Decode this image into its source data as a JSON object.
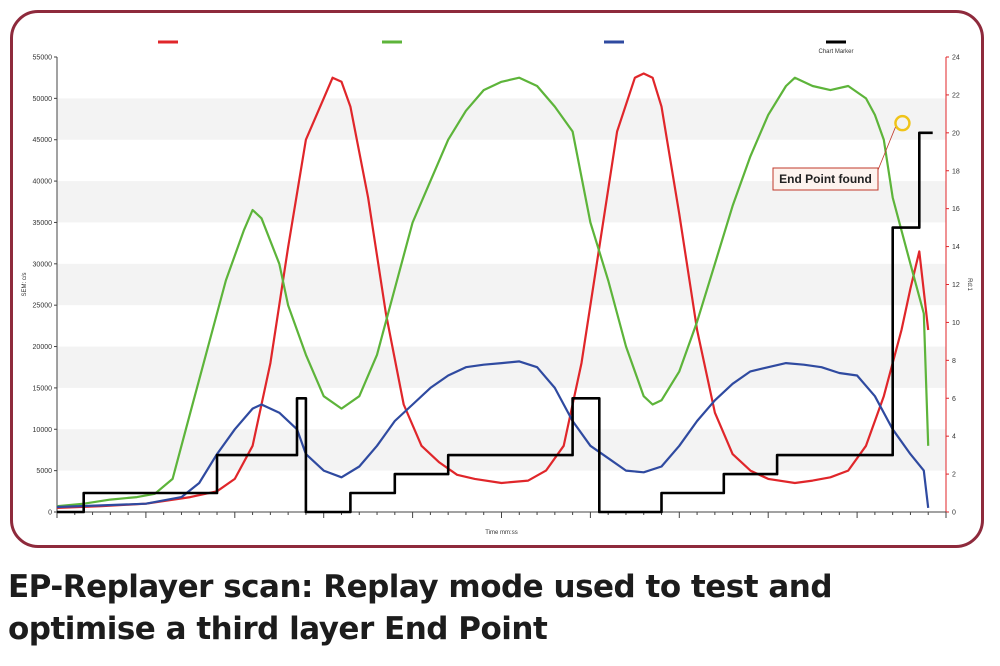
{
  "caption": "EP-Replayer scan: Replay mode used to test and optimise a third layer End Point",
  "colors": {
    "frame": "#8e2a3c",
    "red": "#e0262a",
    "green": "#5db43a",
    "blue": "#2f4aa0",
    "black": "#000000",
    "marker": "#f0c419",
    "callout_border": "#c0392b"
  },
  "chart_data": {
    "type": "line",
    "xlabel": "Time mm:ss",
    "ylabel_left": "SEM: c/s",
    "ylabel_right": "Rd:1",
    "ylim_left": [
      0,
      55000
    ],
    "ylim_right": [
      0,
      24
    ],
    "yticks_left": [
      "0",
      "5000",
      "10000",
      "15000",
      "20000",
      "25000",
      "30000",
      "35000",
      "40000",
      "45000",
      "50000",
      "55000"
    ],
    "yticks_right": [
      "0",
      "2",
      "4",
      "6",
      "8",
      "10",
      "12",
      "14",
      "16",
      "18",
      "20",
      "22",
      "24"
    ],
    "x_range": [
      0,
      100
    ],
    "grid": "horizontal bands",
    "legend": {
      "position": "top",
      "entries": [
        {
          "color": "#e0262a",
          "label": ""
        },
        {
          "color": "#5db43a",
          "label": ""
        },
        {
          "color": "#2f4aa0",
          "label": ""
        },
        {
          "color": "#000000",
          "label": "Chart Marker"
        }
      ]
    },
    "annotation": {
      "text": "End Point found",
      "x": 95.1,
      "y": 47000
    },
    "series": [
      {
        "color": "#e0262a",
        "axis": "left",
        "points": [
          [
            0,
            500
          ],
          [
            5,
            700
          ],
          [
            10,
            1000
          ],
          [
            15,
            1800
          ],
          [
            18,
            2500
          ],
          [
            20,
            4000
          ],
          [
            22,
            8000
          ],
          [
            24,
            18000
          ],
          [
            26,
            32000
          ],
          [
            28,
            45000
          ],
          [
            30,
            50000
          ],
          [
            31,
            52500
          ],
          [
            32,
            52000
          ],
          [
            33,
            49000
          ],
          [
            35,
            38000
          ],
          [
            37,
            24000
          ],
          [
            39,
            13000
          ],
          [
            41,
            8000
          ],
          [
            43,
            6000
          ],
          [
            45,
            4500
          ],
          [
            47,
            4000
          ],
          [
            50,
            3500
          ],
          [
            53,
            3800
          ],
          [
            55,
            5000
          ],
          [
            57,
            8000
          ],
          [
            59,
            18000
          ],
          [
            61,
            32000
          ],
          [
            63,
            46000
          ],
          [
            65,
            52500
          ],
          [
            66,
            53000
          ],
          [
            67,
            52500
          ],
          [
            68,
            49000
          ],
          [
            70,
            36000
          ],
          [
            72,
            22000
          ],
          [
            74,
            12000
          ],
          [
            76,
            7000
          ],
          [
            78,
            5000
          ],
          [
            80,
            4000
          ],
          [
            83,
            3500
          ],
          [
            85,
            3800
          ],
          [
            87,
            4200
          ],
          [
            89,
            5000
          ],
          [
            91,
            8000
          ],
          [
            93,
            14000
          ],
          [
            95,
            22000
          ],
          [
            96,
            27000
          ],
          [
            97,
            31500
          ],
          [
            98,
            22000
          ]
        ]
      },
      {
        "color": "#5db43a",
        "axis": "left",
        "points": [
          [
            0,
            700
          ],
          [
            3,
            1000
          ],
          [
            6,
            1500
          ],
          [
            9,
            1800
          ],
          [
            11,
            2200
          ],
          [
            13,
            4000
          ],
          [
            15,
            12000
          ],
          [
            17,
            20000
          ],
          [
            19,
            28000
          ],
          [
            21,
            34000
          ],
          [
            22,
            36500
          ],
          [
            23,
            35500
          ],
          [
            25,
            30000
          ],
          [
            26,
            25000
          ],
          [
            28,
            19000
          ],
          [
            30,
            14000
          ],
          [
            32,
            12500
          ],
          [
            34,
            14000
          ],
          [
            36,
            19000
          ],
          [
            38,
            27000
          ],
          [
            40,
            35000
          ],
          [
            42,
            40000
          ],
          [
            44,
            45000
          ],
          [
            46,
            48500
          ],
          [
            48,
            51000
          ],
          [
            50,
            52000
          ],
          [
            52,
            52500
          ],
          [
            54,
            51500
          ],
          [
            56,
            49000
          ],
          [
            58,
            46000
          ],
          [
            60,
            35000
          ],
          [
            62,
            28000
          ],
          [
            64,
            20000
          ],
          [
            66,
            14000
          ],
          [
            67,
            13000
          ],
          [
            68,
            13500
          ],
          [
            70,
            17000
          ],
          [
            72,
            23000
          ],
          [
            74,
            30000
          ],
          [
            76,
            37000
          ],
          [
            78,
            43000
          ],
          [
            80,
            48000
          ],
          [
            82,
            51500
          ],
          [
            83,
            52500
          ],
          [
            85,
            51500
          ],
          [
            87,
            51000
          ],
          [
            89,
            51500
          ],
          [
            91,
            50000
          ],
          [
            92,
            48000
          ],
          [
            93,
            45000
          ],
          [
            94,
            38000
          ],
          [
            96,
            30000
          ],
          [
            97.5,
            24000
          ],
          [
            98,
            8000
          ]
        ]
      },
      {
        "color": "#2f4aa0",
        "axis": "left",
        "points": [
          [
            0,
            600
          ],
          [
            5,
            800
          ],
          [
            10,
            1000
          ],
          [
            14,
            1800
          ],
          [
            16,
            3500
          ],
          [
            18,
            7000
          ],
          [
            20,
            10000
          ],
          [
            22,
            12500
          ],
          [
            23,
            13000
          ],
          [
            25,
            12000
          ],
          [
            27,
            10000
          ],
          [
            28,
            7000
          ],
          [
            30,
            5000
          ],
          [
            32,
            4200
          ],
          [
            34,
            5500
          ],
          [
            36,
            8000
          ],
          [
            38,
            11000
          ],
          [
            40,
            13000
          ],
          [
            42,
            15000
          ],
          [
            44,
            16500
          ],
          [
            46,
            17500
          ],
          [
            48,
            17800
          ],
          [
            50,
            18000
          ],
          [
            52,
            18200
          ],
          [
            54,
            17500
          ],
          [
            56,
            15000
          ],
          [
            58,
            11000
          ],
          [
            60,
            8000
          ],
          [
            62,
            6500
          ],
          [
            64,
            5000
          ],
          [
            66,
            4800
          ],
          [
            68,
            5500
          ],
          [
            70,
            8000
          ],
          [
            72,
            11000
          ],
          [
            74,
            13500
          ],
          [
            76,
            15500
          ],
          [
            78,
            17000
          ],
          [
            80,
            17500
          ],
          [
            82,
            18000
          ],
          [
            84,
            17800
          ],
          [
            86,
            17500
          ],
          [
            88,
            16800
          ],
          [
            90,
            16500
          ],
          [
            92,
            14000
          ],
          [
            94,
            10000
          ],
          [
            96,
            7000
          ],
          [
            97.5,
            5000
          ],
          [
            98,
            500
          ]
        ]
      },
      {
        "color": "#000000",
        "axis": "right",
        "points": [
          [
            0,
            0
          ],
          [
            3,
            0
          ],
          [
            3,
            1
          ],
          [
            18,
            1
          ],
          [
            18,
            3
          ],
          [
            27,
            3
          ],
          [
            27,
            6
          ],
          [
            28,
            6
          ],
          [
            28,
            0
          ],
          [
            33,
            0
          ],
          [
            33,
            1
          ],
          [
            38,
            1
          ],
          [
            38,
            2
          ],
          [
            44,
            2
          ],
          [
            44,
            3
          ],
          [
            58,
            3
          ],
          [
            58,
            6
          ],
          [
            61,
            6
          ],
          [
            61,
            0
          ],
          [
            68,
            0
          ],
          [
            68,
            1
          ],
          [
            75,
            1
          ],
          [
            75,
            2
          ],
          [
            81,
            2
          ],
          [
            81,
            3
          ],
          [
            94,
            3
          ],
          [
            94,
            15
          ],
          [
            97,
            15
          ],
          [
            97,
            20
          ],
          [
            98.5,
            20
          ]
        ]
      }
    ]
  }
}
